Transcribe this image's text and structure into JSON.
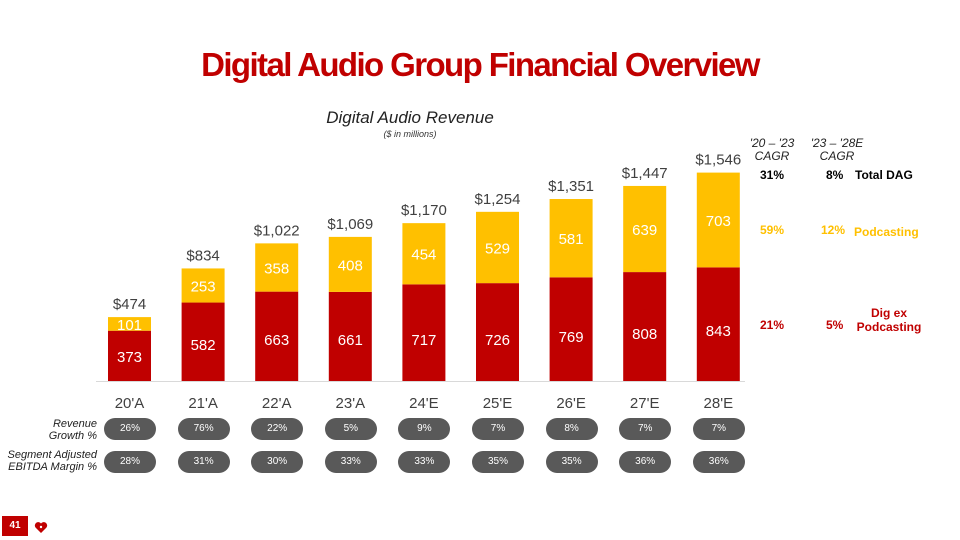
{
  "header": {
    "title": "Digital Audio Group Financial Overview",
    "subtitle": "Digital Audio Revenue",
    "unit": "($ in millions)"
  },
  "chart_data": {
    "type": "bar",
    "stacked": true,
    "categories": [
      "20'A",
      "21'A",
      "22'A",
      "23'A",
      "24'E",
      "25'E",
      "26'E",
      "27'E",
      "28'E"
    ],
    "series": [
      {
        "name": "Dig ex Podcasting",
        "color": "#c00000",
        "values": [
          373,
          582,
          663,
          661,
          717,
          726,
          769,
          808,
          843
        ]
      },
      {
        "name": "Podcasting",
        "color": "#ffc000",
        "values": [
          101,
          253,
          358,
          408,
          454,
          529,
          581,
          639,
          703
        ]
      }
    ],
    "totals": [
      "$474",
      "$834",
      "$1,022",
      "$1,069",
      "$1,170",
      "$1,254",
      "$1,351",
      "$1,447",
      "$1,546"
    ],
    "title": "Digital Audio Revenue",
    "ylabel": "$ in millions",
    "ylim": [
      0,
      1600
    ]
  },
  "cagr": {
    "headers": [
      "'20 – '23\nCAGR",
      "'23 – '28E\nCAGR"
    ],
    "rows": [
      {
        "label": "Total DAG",
        "v2023": "31%",
        "v2028": "8%",
        "color": "#000000"
      },
      {
        "label": "Podcasting",
        "v2023": "59%",
        "v2028": "12%",
        "color": "#ffc000"
      },
      {
        "label": "Dig ex\nPodcasting",
        "v2023": "21%",
        "v2028": "5%",
        "color": "#c00000"
      }
    ]
  },
  "metrics": {
    "revenue_growth_label": "Revenue\nGrowth %",
    "revenue_growth": [
      "26%",
      "76%",
      "22%",
      "5%",
      "9%",
      "7%",
      "8%",
      "7%",
      "7%"
    ],
    "ebitda_label": "Segment Adjusted\nEBITDA Margin %",
    "ebitda_margin": [
      "28%",
      "31%",
      "30%",
      "33%",
      "33%",
      "35%",
      "35%",
      "36%",
      "36%"
    ]
  },
  "footer": {
    "page_number": "41"
  },
  "colors": {
    "red": "#c00000",
    "yellow": "#ffc000",
    "pill": "#595959"
  }
}
